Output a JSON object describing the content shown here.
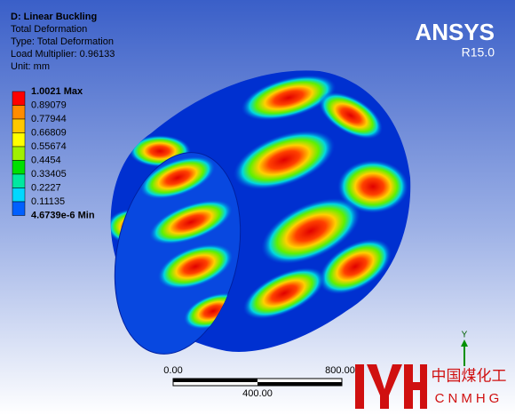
{
  "header": {
    "title": "D: Linear Buckling",
    "lines": [
      "Total Deformation",
      "Type: Total Deformation",
      "Load Multiplier: 0.96133",
      "Unit: mm"
    ]
  },
  "legend": {
    "labels": [
      "1.0021 Max",
      "0.89079",
      "0.77944",
      "0.66809",
      "0.55674",
      "0.4454",
      "0.33405",
      "0.2227",
      "0.11135",
      "4.6739e-6 Min"
    ],
    "colors": [
      "#ff0000",
      "#ff8c00",
      "#ffc800",
      "#ffff00",
      "#a0f000",
      "#00e000",
      "#00e8a0",
      "#00d8ff",
      "#0060ff"
    ]
  },
  "logo": {
    "name": "ANSYS",
    "release": "R15.0"
  },
  "scale": {
    "left": "0.00",
    "middle": "400.00",
    "right": "800.00"
  },
  "triad": {
    "axis": "Y"
  },
  "watermark": {
    "chinese": "中国煤化工",
    "latin": "CNMHG"
  }
}
